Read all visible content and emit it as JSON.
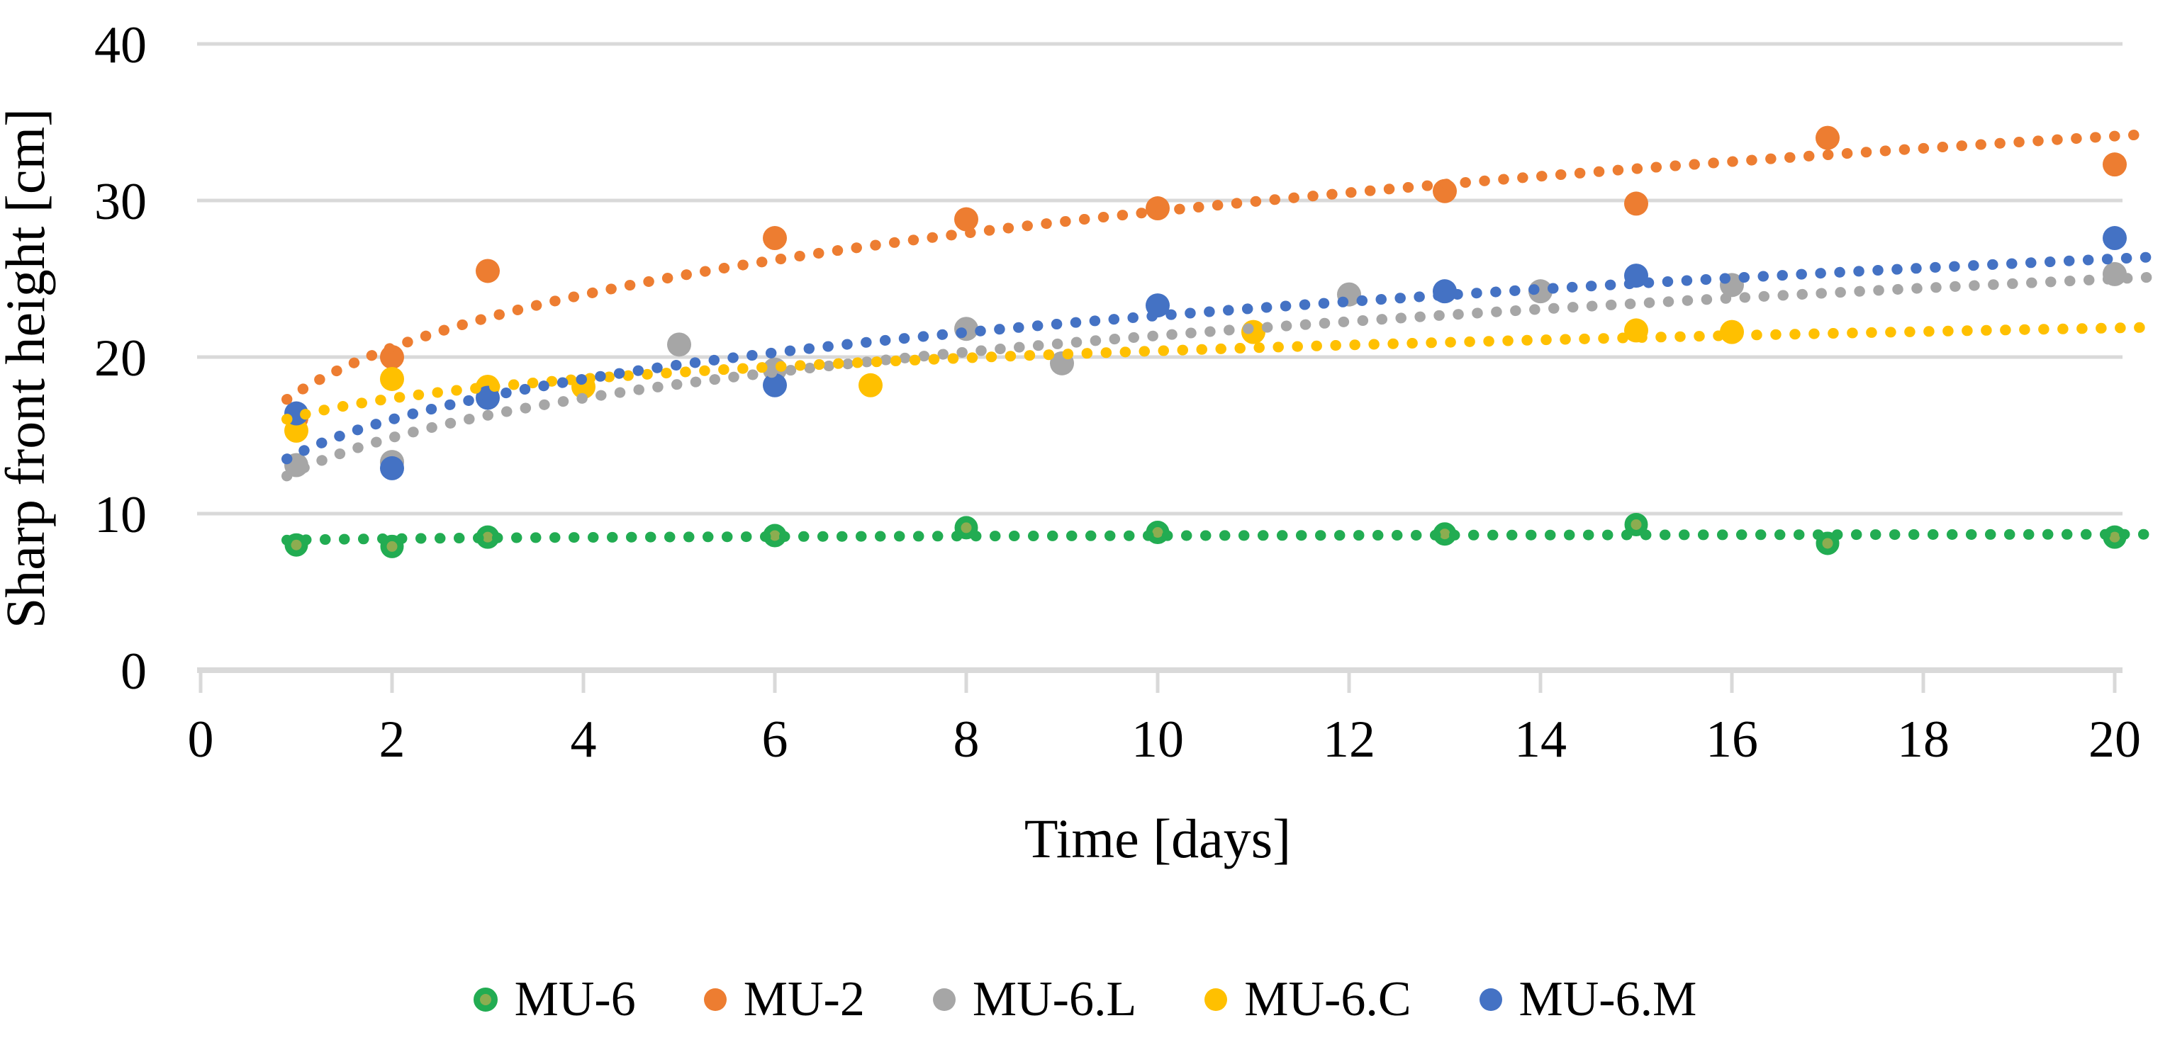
{
  "chart_data": {
    "type": "scatter",
    "title": "",
    "xlabel": "Time [days]",
    "ylabel": "Sharp front height [cm]",
    "xlim": [
      0,
      20
    ],
    "ylim": [
      0,
      40
    ],
    "x_ticks": [
      0,
      2,
      4,
      6,
      8,
      10,
      12,
      14,
      16,
      18,
      20
    ],
    "y_ticks": [
      0,
      10,
      20,
      30,
      40
    ],
    "grid": "horizontal-only",
    "legend_position": "bottom",
    "series": [
      {
        "name": "MU-6",
        "color": "#22AC52",
        "marker_style": "ring",
        "marker_inner_color": "#8CAD50",
        "points": [
          [
            1,
            8.0
          ],
          [
            2,
            7.9
          ],
          [
            3,
            8.5
          ],
          [
            6,
            8.6
          ],
          [
            8,
            9.1
          ],
          [
            10,
            8.8
          ],
          [
            13,
            8.7
          ],
          [
            15,
            9.3
          ],
          [
            17,
            8.1
          ],
          [
            20,
            8.5
          ]
        ],
        "trendline": {
          "type": "power",
          "a": 8.32,
          "b": 0.014,
          "style": "dotted"
        }
      },
      {
        "name": "MU-2",
        "color": "#ED7D31",
        "marker_style": "solid",
        "points": [
          [
            1,
            16.1
          ],
          [
            2,
            20.0
          ],
          [
            3,
            25.5
          ],
          [
            6,
            27.6
          ],
          [
            8,
            28.8
          ],
          [
            10,
            29.5
          ],
          [
            13,
            30.6
          ],
          [
            15,
            29.8
          ],
          [
            17,
            34.0
          ],
          [
            20,
            32.3
          ]
        ],
        "trendline": {
          "type": "power",
          "a": 17.7,
          "b": 0.219,
          "style": "dotted"
        }
      },
      {
        "name": "MU-6.L",
        "color": "#A6A6A6",
        "marker_style": "solid",
        "points": [
          [
            1,
            13.1
          ],
          [
            2,
            13.3
          ],
          [
            5,
            20.8
          ],
          [
            6,
            19.2
          ],
          [
            8,
            21.8
          ],
          [
            9,
            19.6
          ],
          [
            12,
            24.0
          ],
          [
            14,
            24.2
          ],
          [
            16,
            24.6
          ],
          [
            20,
            25.3
          ]
        ],
        "trendline": {
          "type": "power",
          "a": 12.7,
          "b": 0.226,
          "style": "dotted"
        }
      },
      {
        "name": "MU-6.C",
        "color": "#FFC000",
        "marker_style": "solid",
        "points": [
          [
            1,
            15.3
          ],
          [
            2,
            18.6
          ],
          [
            3,
            18.1
          ],
          [
            4,
            18.1
          ],
          [
            7,
            18.2
          ],
          [
            11,
            21.6
          ],
          [
            15,
            21.7
          ],
          [
            16,
            21.6
          ]
        ],
        "trendline": {
          "type": "power",
          "a": 16.2,
          "b": 0.1,
          "style": "dotted"
        }
      },
      {
        "name": "MU-6.M",
        "color": "#4472C4",
        "marker_style": "solid",
        "points": [
          [
            1,
            16.4
          ],
          [
            2,
            12.9
          ],
          [
            3,
            17.4
          ],
          [
            6,
            18.2
          ],
          [
            10,
            23.3
          ],
          [
            13,
            24.2
          ],
          [
            15,
            25.2
          ],
          [
            20,
            27.6
          ]
        ],
        "trendline": {
          "type": "power",
          "a": 13.8,
          "b": 0.215,
          "style": "dotted"
        }
      }
    ],
    "style": {
      "grid_color": "#D9D9D9",
      "text_color": "#000000",
      "background": "#FFFFFF"
    }
  }
}
